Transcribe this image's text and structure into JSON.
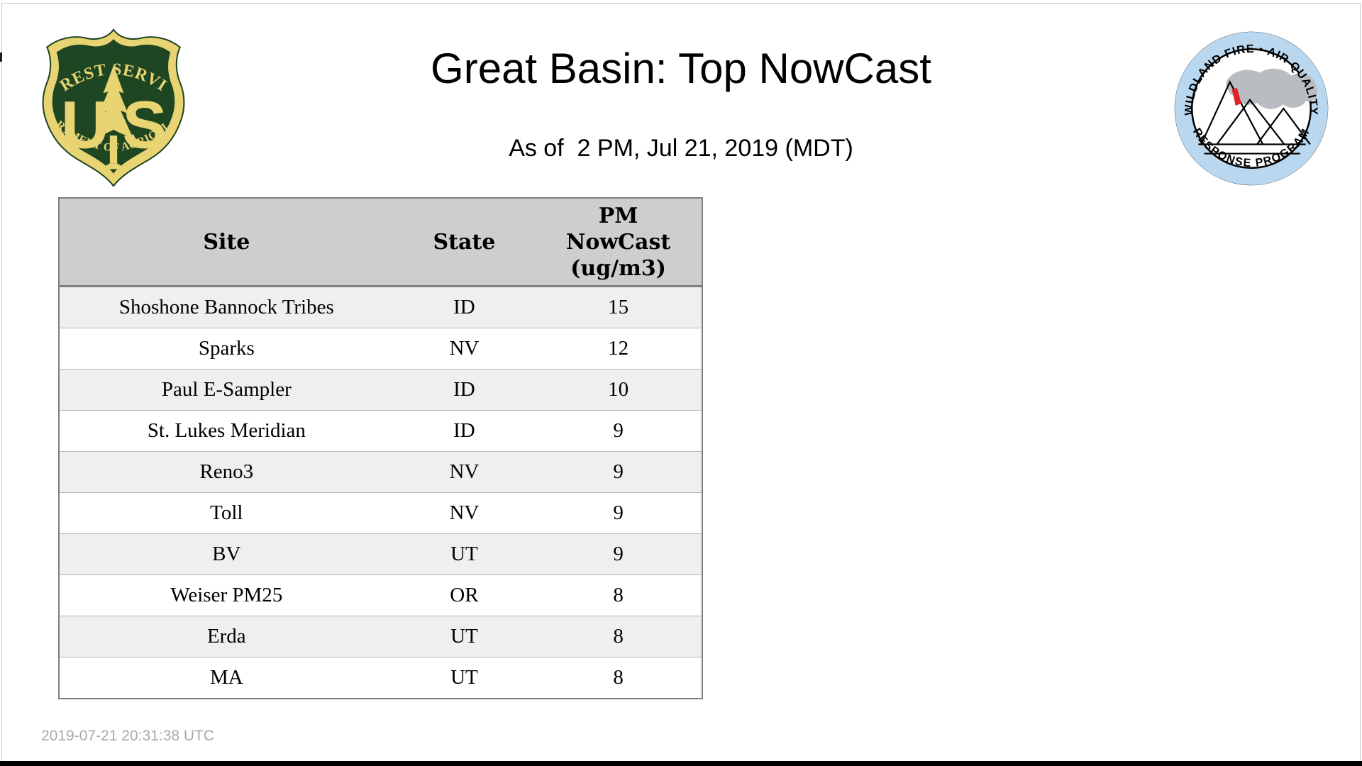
{
  "page": {
    "title": "Great Basin: Top NowCast",
    "subtitle": "As of  2 PM, Jul 21, 2019 (MDT)",
    "footer_timestamp": "2019-07-21 20:31:38 UTC"
  },
  "logos": {
    "forest_service": {
      "top_arc_text": "FOREST SERVICE",
      "bottom_arc_text": "DEPARTMENT OF AGRICULTURE",
      "letter_left": "U",
      "letter_right": "S",
      "green": "#1f4622",
      "gold": "#e8d472"
    },
    "wfaqrp": {
      "top_arc_text": "WILDLAND FIRE • AIR QUALITY",
      "bottom_arc_text": "RESPONSE PROGRAM",
      "ring_blue": "#b9d7ef",
      "smoke_gray": "#b9bcc0",
      "flame_red": "#e02built"
    }
  },
  "table": {
    "header": {
      "site": "Site",
      "state": "State",
      "nowcast_lines": [
        "PM",
        "NowCast",
        "(ug/m3)"
      ]
    },
    "rows": [
      {
        "site": "Shoshone Bannock Tribes",
        "state": "ID",
        "nowcast": "15"
      },
      {
        "site": "Sparks",
        "state": "NV",
        "nowcast": "12"
      },
      {
        "site": "Paul E-Sampler",
        "state": "ID",
        "nowcast": "10"
      },
      {
        "site": "St. Lukes Meridian",
        "state": "ID",
        "nowcast": "9"
      },
      {
        "site": "Reno3",
        "state": "NV",
        "nowcast": "9"
      },
      {
        "site": "Toll",
        "state": "NV",
        "nowcast": "9"
      },
      {
        "site": "BV",
        "state": "UT",
        "nowcast": "9"
      },
      {
        "site": "Weiser PM25",
        "state": "OR",
        "nowcast": "8"
      },
      {
        "site": "Erda",
        "state": "UT",
        "nowcast": "8"
      },
      {
        "site": "MA",
        "state": "UT",
        "nowcast": "8"
      }
    ],
    "colors": {
      "header_bg": "#cecece",
      "alt_row_bg": "#efefef",
      "outer_border": "#7f7f7f"
    }
  }
}
